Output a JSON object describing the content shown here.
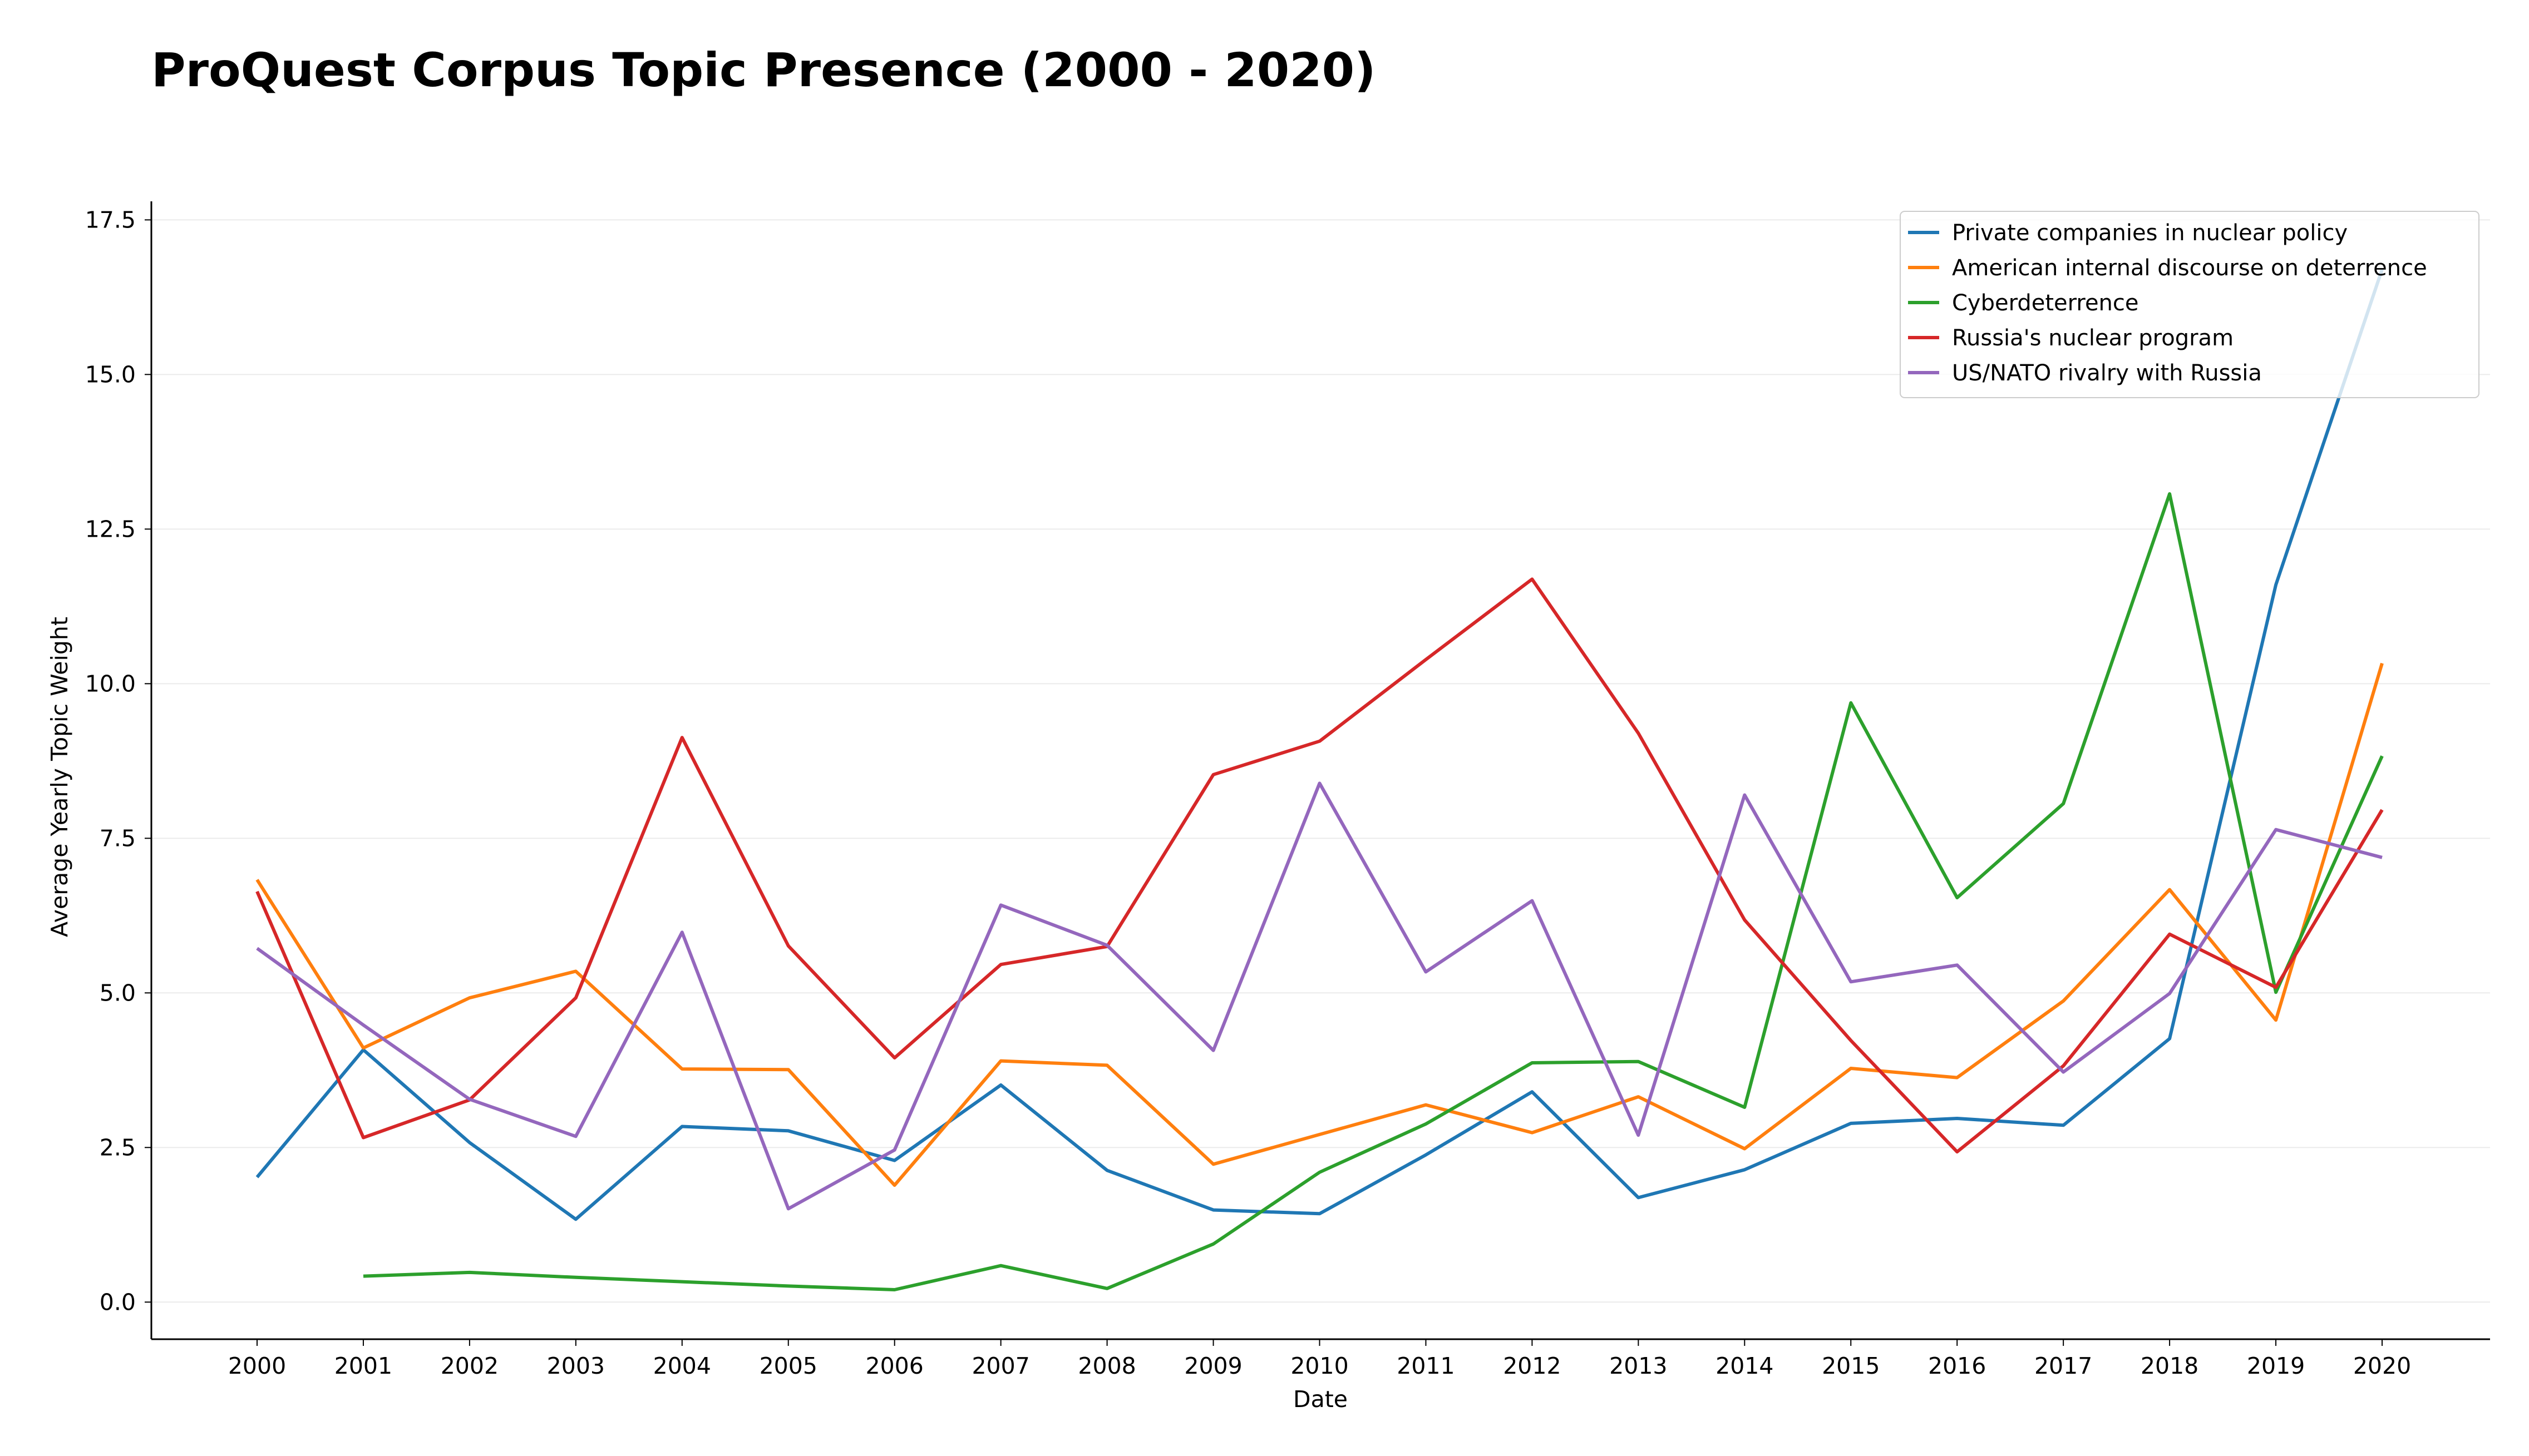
{
  "chart_data": {
    "type": "line",
    "title": "ProQuest Corpus Topic Presence (2000 - 2020)",
    "xlabel": "Date",
    "ylabel": "Average Yearly Topic Weight",
    "x": [
      "2000",
      "2001",
      "2002",
      "2003",
      "2004",
      "2005",
      "2006",
      "2007",
      "2008",
      "2009",
      "2010",
      "2011",
      "2012",
      "2013",
      "2014",
      "2015",
      "2016",
      "2017",
      "2018",
      "2019",
      "2020"
    ],
    "ylim": [
      -0.6,
      17.8
    ],
    "yticks": [
      0.0,
      2.5,
      5.0,
      7.5,
      10.0,
      12.5,
      15.0,
      17.5
    ],
    "ytick_labels": [
      "0.0",
      "2.5",
      "5.0",
      "7.5",
      "10.0",
      "12.5",
      "15.0",
      "17.5"
    ],
    "grid": "horizontal",
    "legend_position": "top-right",
    "series": [
      {
        "name": "Private companies in nuclear policy",
        "color": "#1f77b4",
        "values": [
          2.02,
          4.08,
          2.58,
          1.34,
          2.84,
          2.77,
          2.29,
          3.51,
          2.13,
          1.49,
          1.43,
          2.38,
          3.4,
          1.69,
          2.14,
          2.89,
          2.97,
          2.86,
          4.26,
          11.6,
          16.7
        ]
      },
      {
        "name": "American internal discourse on deterrence",
        "color": "#ff7f0e",
        "values": [
          6.83,
          4.11,
          4.92,
          5.35,
          3.77,
          3.76,
          1.89,
          3.9,
          3.83,
          2.23,
          2.71,
          3.19,
          2.74,
          3.32,
          2.48,
          3.78,
          3.63,
          4.87,
          6.67,
          4.56,
          10.33
        ]
      },
      {
        "name": "Cyberdeterrence",
        "color": "#2ca02c",
        "values": [
          null,
          0.42,
          0.48,
          0.4,
          0.33,
          0.26,
          0.2,
          0.59,
          0.22,
          0.94,
          2.1,
          2.88,
          3.87,
          3.89,
          3.15,
          9.69,
          6.54,
          8.06,
          13.07,
          5.01,
          8.83
        ]
      },
      {
        "name": "Russia's nuclear program",
        "color": "#d62728",
        "values": [
          6.64,
          2.66,
          3.27,
          4.92,
          9.13,
          5.76,
          3.95,
          5.46,
          5.75,
          8.53,
          9.07,
          10.39,
          11.69,
          9.2,
          6.18,
          4.23,
          2.43,
          3.82,
          5.95,
          5.09,
          7.96
        ]
      },
      {
        "name": "US/NATO rivalry with Russia",
        "color": "#9467bd",
        "values": [
          5.72,
          4.48,
          3.28,
          2.68,
          5.98,
          1.51,
          2.46,
          6.42,
          5.77,
          4.07,
          8.39,
          5.34,
          6.49,
          2.7,
          8.2,
          5.18,
          5.45,
          3.72,
          4.99,
          7.64,
          7.19
        ]
      }
    ]
  }
}
